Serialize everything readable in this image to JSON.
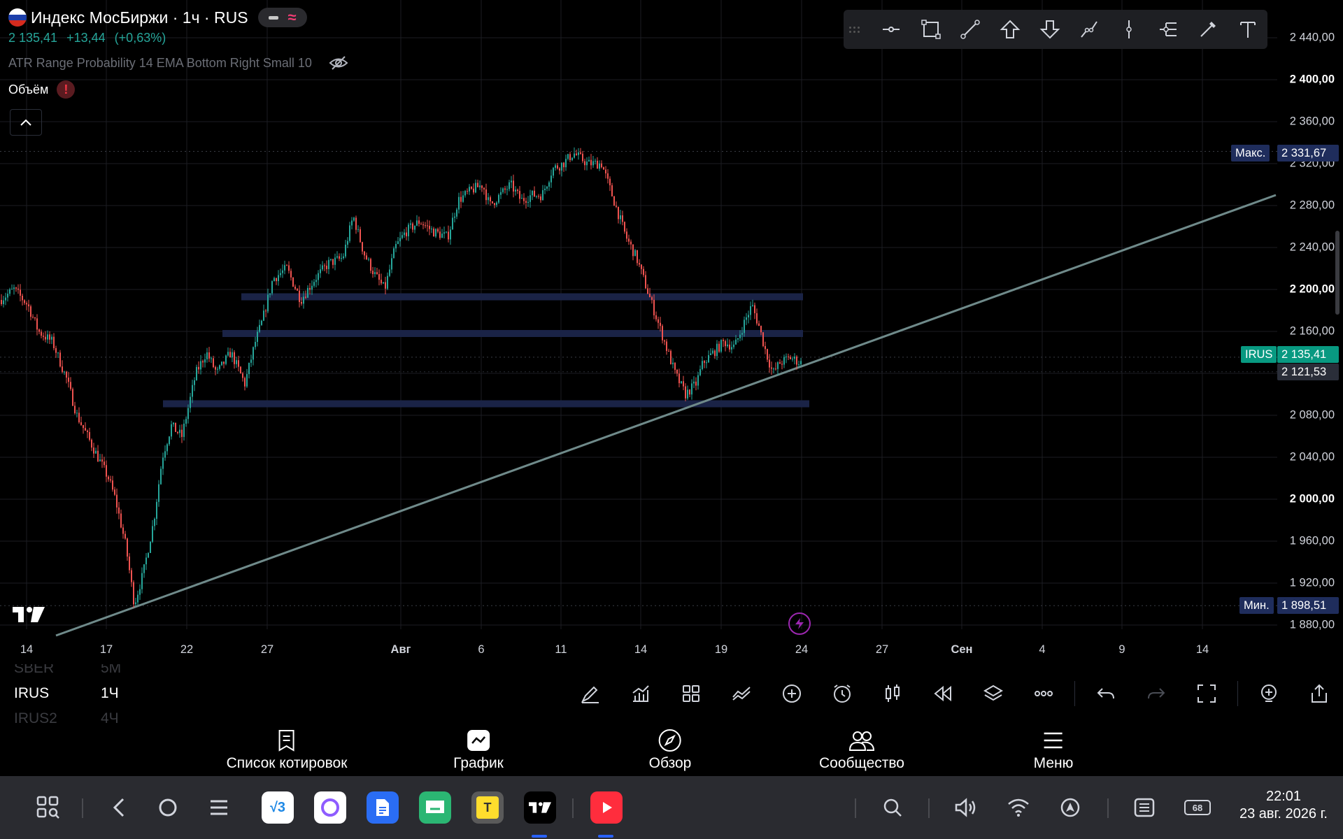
{
  "header": {
    "title": "Индекс МосБиржи · 1ч · RUS",
    "last_price": "2 135,41",
    "change": "+13,44",
    "change_pct": "(+0,63%)",
    "indicator_label": "ATR Range Probability 14 EMA Bottom Right Small 10",
    "volume_label": "Объём",
    "volume_warning": "!"
  },
  "toolbar_tools": [
    "horizontal-ray-icon",
    "rectangle-icon",
    "trend-line-icon",
    "arrow-up-icon",
    "arrow-down-icon",
    "path-icon",
    "vertical-line-icon",
    "pitchfork-icon",
    "brush-icon",
    "text-icon"
  ],
  "price_axis": {
    "labels": [
      {
        "v": 2440,
        "t": "2 440,00",
        "bold": false
      },
      {
        "v": 2400,
        "t": "2 400,00",
        "bold": true
      },
      {
        "v": 2360,
        "t": "2 360,00",
        "bold": false
      },
      {
        "v": 2320,
        "t": "2 320,00",
        "bold": false
      },
      {
        "v": 2280,
        "t": "2 280,00",
        "bold": false
      },
      {
        "v": 2240,
        "t": "2 240,00",
        "bold": false
      },
      {
        "v": 2200,
        "t": "2 200,00",
        "bold": true
      },
      {
        "v": 2160,
        "t": "2 160,00",
        "bold": false
      },
      {
        "v": 2080,
        "t": "2 080,00",
        "bold": false
      },
      {
        "v": 2040,
        "t": "2 040,00",
        "bold": false
      },
      {
        "v": 2000,
        "t": "2 000,00",
        "bold": true
      },
      {
        "v": 1960,
        "t": "1 960,00",
        "bold": false
      },
      {
        "v": 1920,
        "t": "1 920,00",
        "bold": false
      },
      {
        "v": 1880,
        "t": "1 880,00",
        "bold": false
      }
    ],
    "max_label": "Макс.",
    "max_value": "2 331,67",
    "min_label": "Мин.",
    "min_value": "1 898,51",
    "symbol_tag": "IRUS",
    "symbol_price": "2 135,41",
    "secondary_price": "2 121,53"
  },
  "time_axis": [
    {
      "t": "14",
      "bold": false
    },
    {
      "t": "17",
      "bold": false
    },
    {
      "t": "22",
      "bold": false
    },
    {
      "t": "27",
      "bold": false
    },
    {
      "t": "Авг",
      "bold": true
    },
    {
      "t": "6",
      "bold": false
    },
    {
      "t": "11",
      "bold": false
    },
    {
      "t": "14",
      "bold": false
    },
    {
      "t": "19",
      "bold": false
    },
    {
      "t": "24",
      "bold": false
    },
    {
      "t": "27",
      "bold": false
    },
    {
      "t": "Сен",
      "bold": true
    },
    {
      "t": "4",
      "bold": false
    },
    {
      "t": "9",
      "bold": false
    },
    {
      "t": "14",
      "bold": false
    }
  ],
  "chart_data": {
    "type": "candlestick",
    "symbol": "IRUS",
    "timeframe": "1ч",
    "ylim": [
      1860,
      2460
    ],
    "session_path": [
      [
        0,
        2190
      ],
      [
        20,
        2200
      ],
      [
        40,
        2185
      ],
      [
        55,
        2160
      ],
      [
        75,
        2150
      ],
      [
        95,
        2115
      ],
      [
        110,
        2080
      ],
      [
        125,
        2060
      ],
      [
        140,
        2040
      ],
      [
        155,
        2020
      ],
      [
        165,
        2000
      ],
      [
        180,
        1955
      ],
      [
        192,
        1900
      ],
      [
        205,
        1930
      ],
      [
        220,
        1980
      ],
      [
        232,
        2040
      ],
      [
        245,
        2070
      ],
      [
        260,
        2060
      ],
      [
        280,
        2120
      ],
      [
        295,
        2140
      ],
      [
        310,
        2120
      ],
      [
        330,
        2140
      ],
      [
        350,
        2110
      ],
      [
        365,
        2150
      ],
      [
        375,
        2170
      ],
      [
        390,
        2210
      ],
      [
        410,
        2220
      ],
      [
        430,
        2190
      ],
      [
        450,
        2210
      ],
      [
        470,
        2225
      ],
      [
        490,
        2230
      ],
      [
        505,
        2270
      ],
      [
        520,
        2235
      ],
      [
        535,
        2215
      ],
      [
        550,
        2200
      ],
      [
        565,
        2240
      ],
      [
        580,
        2255
      ],
      [
        600,
        2265
      ],
      [
        620,
        2255
      ],
      [
        640,
        2250
      ],
      [
        655,
        2285
      ],
      [
        675,
        2295
      ],
      [
        690,
        2300
      ],
      [
        700,
        2280
      ],
      [
        715,
        2290
      ],
      [
        730,
        2300
      ],
      [
        745,
        2285
      ],
      [
        760,
        2290
      ],
      [
        775,
        2290
      ],
      [
        790,
        2315
      ],
      [
        805,
        2320
      ],
      [
        820,
        2330
      ],
      [
        840,
        2320
      ],
      [
        860,
        2320
      ],
      [
        880,
        2280
      ],
      [
        895,
        2250
      ],
      [
        910,
        2230
      ],
      [
        925,
        2200
      ],
      [
        935,
        2180
      ],
      [
        950,
        2150
      ],
      [
        965,
        2120
      ],
      [
        980,
        2100
      ],
      [
        995,
        2110
      ],
      [
        1005,
        2130
      ],
      [
        1020,
        2140
      ],
      [
        1035,
        2150
      ],
      [
        1050,
        2145
      ],
      [
        1065,
        2170
      ],
      [
        1075,
        2185
      ],
      [
        1085,
        2165
      ],
      [
        1095,
        2140
      ],
      [
        1105,
        2120
      ],
      [
        1115,
        2130
      ],
      [
        1130,
        2135
      ],
      [
        1145,
        2130
      ]
    ],
    "trendline": {
      "x1": 80,
      "y1": 1870,
      "x2": 1824,
      "y2": 2290
    },
    "zones": [
      {
        "x1": 345,
        "x2": 1148,
        "y": 2193
      },
      {
        "x1": 318,
        "x2": 1148,
        "y": 2158
      },
      {
        "x1": 233,
        "x2": 1157,
        "y": 2091
      }
    ],
    "max": 2331.67,
    "min": 1898.51,
    "last": 2135.41
  },
  "symbol_wheel": [
    {
      "sym": "SBER",
      "tf": "5M",
      "state": "dim"
    },
    {
      "sym": "IRUS",
      "tf": "1Ч",
      "state": "active"
    },
    {
      "sym": "IRUS2",
      "tf": "4Ч",
      "state": "dim"
    }
  ],
  "bottom_toolbar": [
    "brush-icon",
    "indicators-icon",
    "templates-icon",
    "compare-icon",
    "add-icon",
    "alert-icon",
    "candles-icon",
    "replay-icon",
    "layers-icon",
    "more-icon",
    "undo-icon",
    "redo-icon",
    "fullscreen-icon",
    "zoom-icon",
    "share-icon"
  ],
  "nav": {
    "watchlist": "Список котировок",
    "chart": "График",
    "explore": "Обзор",
    "community": "Сообщество",
    "menu": "Меню"
  },
  "taskbar": {
    "time": "22:01",
    "date": "23 авг. 2026 г.",
    "battery": "68"
  },
  "colors": {
    "up": "#26a69a",
    "down": "#ef5350",
    "zone": "#1a2346",
    "trend": "#6f8a8a",
    "max_tag": "#1f2d5c",
    "symbol_tag": "#089981"
  }
}
